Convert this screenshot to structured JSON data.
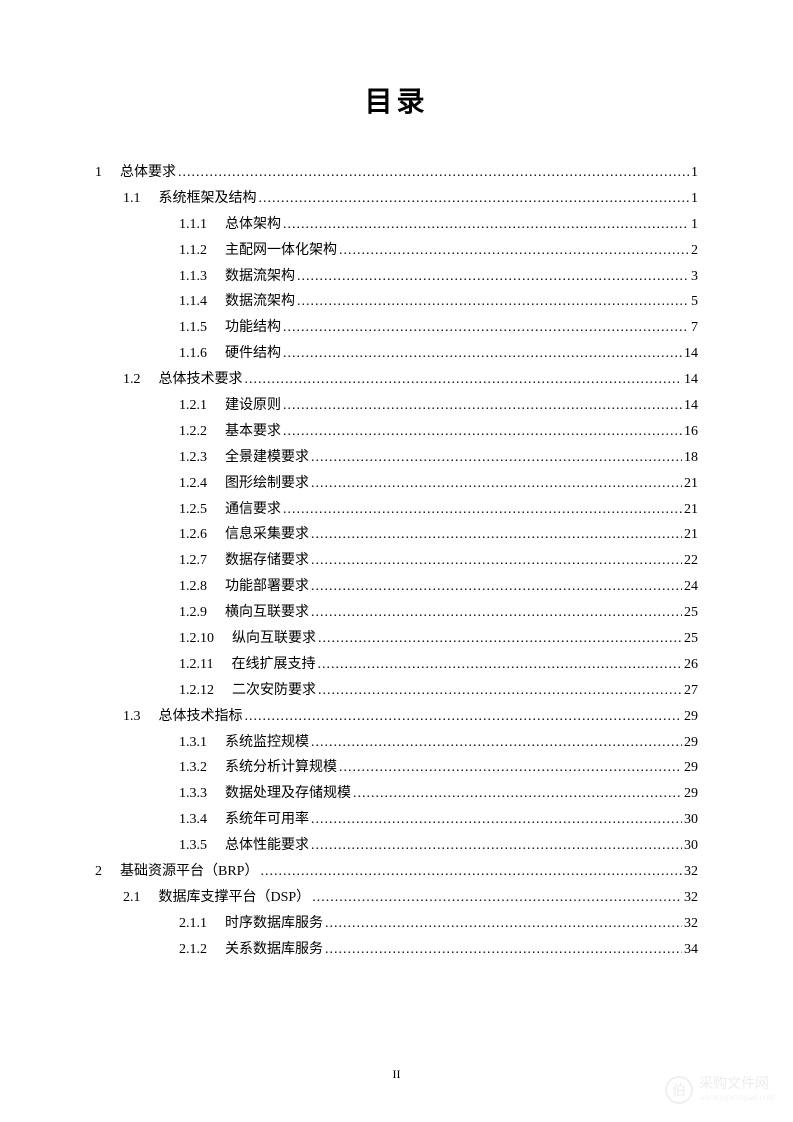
{
  "title": "目录",
  "page_number": "II",
  "watermark": {
    "icon": "伯",
    "text": "采购文件网",
    "url": "www.cgwenjian.com"
  },
  "toc": [
    {
      "level": 0,
      "num": "1",
      "label": "总体要求",
      "page": "1"
    },
    {
      "level": 1,
      "num": "1.1",
      "label": "系统框架及结构",
      "page": "1"
    },
    {
      "level": 2,
      "num": "1.1.1",
      "label": "总体架构",
      "page": "1"
    },
    {
      "level": 2,
      "num": "1.1.2",
      "label": "主配网一体化架构",
      "page": "2"
    },
    {
      "level": 2,
      "num": "1.1.3",
      "label": "数据流架构",
      "page": "3"
    },
    {
      "level": 2,
      "num": "1.1.4",
      "label": "数据流架构",
      "page": "5"
    },
    {
      "level": 2,
      "num": "1.1.5",
      "label": "功能结构",
      "page": "7"
    },
    {
      "level": 2,
      "num": "1.1.6",
      "label": "硬件结构",
      "page": "14"
    },
    {
      "level": 1,
      "num": "1.2",
      "label": "总体技术要求",
      "page": "14"
    },
    {
      "level": 2,
      "num": "1.2.1",
      "label": "建设原则",
      "page": "14"
    },
    {
      "level": 2,
      "num": "1.2.2",
      "label": "基本要求",
      "page": "16"
    },
    {
      "level": 2,
      "num": "1.2.3",
      "label": "全景建模要求",
      "page": "18"
    },
    {
      "level": 2,
      "num": "1.2.4",
      "label": "图形绘制要求",
      "page": "21"
    },
    {
      "level": 2,
      "num": "1.2.5",
      "label": "通信要求",
      "page": "21"
    },
    {
      "level": 2,
      "num": "1.2.6",
      "label": "信息采集要求",
      "page": "21"
    },
    {
      "level": 2,
      "num": "1.2.7",
      "label": "数据存储要求",
      "page": "22"
    },
    {
      "level": 2,
      "num": "1.2.8",
      "label": "功能部署要求",
      "page": "24"
    },
    {
      "level": 2,
      "num": "1.2.9",
      "label": "横向互联要求",
      "page": "25"
    },
    {
      "level": 2,
      "num": "1.2.10",
      "label": "纵向互联要求",
      "page": "25"
    },
    {
      "level": 2,
      "num": "1.2.11",
      "label": "在线扩展支持",
      "page": "26"
    },
    {
      "level": 2,
      "num": "1.2.12",
      "label": "二次安防要求",
      "page": "27"
    },
    {
      "level": 1,
      "num": "1.3",
      "label": "总体技术指标",
      "page": "29"
    },
    {
      "level": 2,
      "num": "1.3.1",
      "label": "系统监控规模",
      "page": "29"
    },
    {
      "level": 2,
      "num": "1.3.2",
      "label": "系统分析计算规模",
      "page": "29"
    },
    {
      "level": 2,
      "num": "1.3.3",
      "label": "数据处理及存储规模",
      "page": "29"
    },
    {
      "level": 2,
      "num": "1.3.4",
      "label": "系统年可用率",
      "page": "30"
    },
    {
      "level": 2,
      "num": "1.3.5",
      "label": "总体性能要求",
      "page": "30"
    },
    {
      "level": 0,
      "num": "2",
      "label": "基础资源平台（BRP）",
      "page": "32"
    },
    {
      "level": 1,
      "num": "2.1",
      "label": "数据库支撑平台（DSP）",
      "page": "32"
    },
    {
      "level": 2,
      "num": "2.1.1",
      "label": "时序数据库服务",
      "page": "32"
    },
    {
      "level": 2,
      "num": "2.1.2",
      "label": "关系数据库服务",
      "page": "34"
    }
  ]
}
